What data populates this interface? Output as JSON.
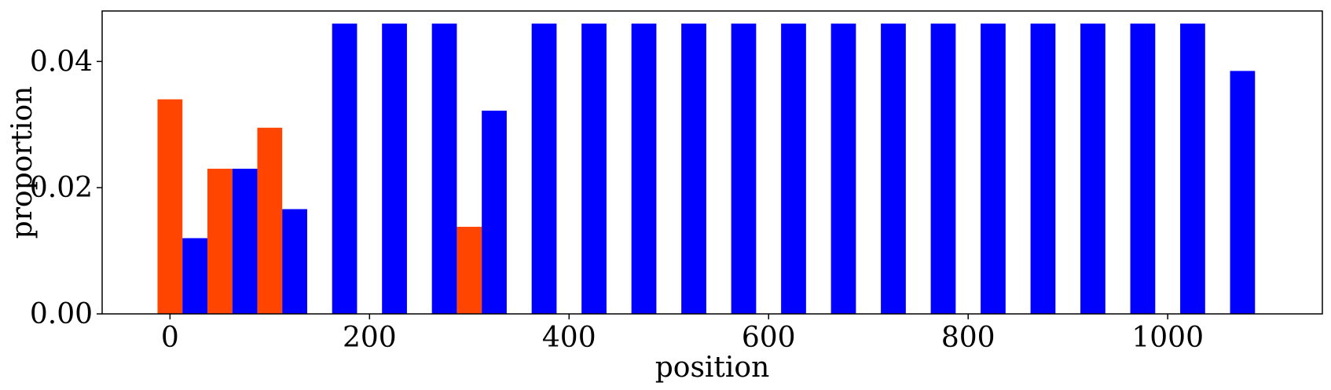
{
  "chart_data": {
    "type": "bar",
    "xlabel": "position",
    "ylabel": "proportion",
    "xlim": [
      -68,
      1155
    ],
    "ylim": [
      0,
      0.048
    ],
    "xticks": [
      0,
      200,
      400,
      600,
      800,
      1000
    ],
    "xtick_labels": [
      "0",
      "200",
      "400",
      "600",
      "800",
      "1000"
    ],
    "yticks": [
      0,
      0.02,
      0.04
    ],
    "ytick_labels": [
      "0.00",
      "0.02",
      "0.04"
    ],
    "grid": false,
    "bar_width": 25,
    "colors": {
      "orange": "#ff4500",
      "blue": "#0000ff"
    },
    "series": [
      {
        "color": "#ff4500",
        "x": [
          0,
          50,
          100,
          300
        ],
        "values": [
          0.034,
          0.023,
          0.0295,
          0.0138
        ]
      },
      {
        "color": "#0000ff",
        "x": [
          25,
          75,
          125,
          175,
          225,
          275,
          325,
          375,
          425,
          475,
          525,
          575,
          625,
          675,
          725,
          775,
          825,
          875,
          925,
          975,
          1025,
          1075
        ],
        "values": [
          0.012,
          0.023,
          0.0166,
          0.046,
          0.046,
          0.046,
          0.0322,
          0.046,
          0.046,
          0.046,
          0.046,
          0.046,
          0.046,
          0.046,
          0.046,
          0.046,
          0.046,
          0.046,
          0.046,
          0.046,
          0.046,
          0.0385
        ]
      }
    ]
  }
}
